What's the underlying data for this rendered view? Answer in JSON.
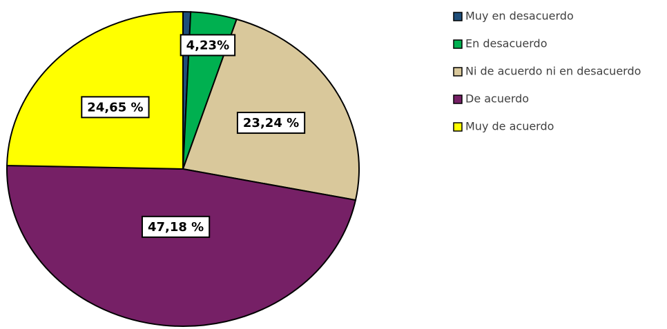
{
  "chart_data": {
    "type": "pie",
    "categories": [
      "Muy en desacuerdo",
      "En desacuerdo",
      "Ni de acuerdo ni en desacuerdo",
      "De acuerdo",
      "Muy de acuerdo"
    ],
    "values": [
      0.7,
      4.23,
      23.24,
      47.18,
      24.65
    ],
    "value_labels": [
      null,
      "4,23%",
      "23,24 %",
      "47,18 %",
      "24,65 %"
    ],
    "colors": [
      "#1f4e79",
      "#00b050",
      "#d9c89b",
      "#762066",
      "#ffff00"
    ],
    "legend": "right"
  }
}
